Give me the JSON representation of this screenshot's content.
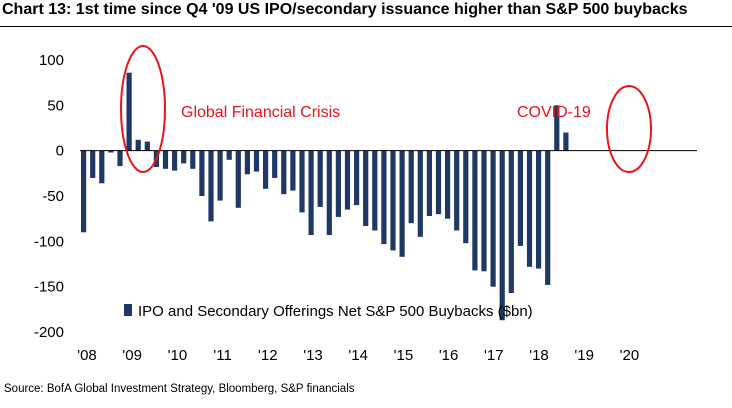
{
  "title": "Chart 13: 1st time since Q4 '09 US IPO/secondary issuance higher than S&P 500 buybacks",
  "source": "Source: BofA Global Investment Strategy, Bloomberg, S&P financials",
  "colors": {
    "bar": "#1f3864",
    "annotation": "#e8151b",
    "axis": "#000000"
  },
  "chart_data": {
    "type": "bar",
    "xlabel": "",
    "ylabel": "",
    "ylim": [
      -200,
      100
    ],
    "yticks": [
      "100",
      "50",
      "0",
      "-50",
      "-100",
      "-150",
      "-200"
    ],
    "xticks": [
      "'08",
      "'09",
      "'10",
      "'11",
      "'12",
      "'13",
      "'14",
      "'15",
      "'16",
      "'17",
      "'18",
      "'19",
      "'20"
    ],
    "grid": false,
    "legend_position": "bottom-center",
    "series": [
      {
        "name": "IPO and Secondary Offerings Net S&P 500 Buybacks ($bn)",
        "values": [
          -90,
          -30,
          -36,
          -2,
          -17,
          86,
          12,
          10,
          -18,
          -20,
          -22,
          -14,
          -20,
          -50,
          -78,
          -55,
          -10,
          -63,
          -26,
          -23,
          -42,
          -30,
          -48,
          -44,
          -68,
          -93,
          -62,
          -93,
          -73,
          -65,
          -60,
          -83,
          -88,
          -103,
          -110,
          -117,
          -80,
          -95,
          -72,
          -70,
          -75,
          -88,
          -102,
          -132,
          -133,
          -150,
          -187,
          -157,
          -105,
          -128,
          -130,
          -148,
          50,
          20
        ]
      }
    ],
    "annotations": [
      {
        "text": "Global Financial Crisis"
      },
      {
        "text": "COVID-19"
      }
    ]
  }
}
